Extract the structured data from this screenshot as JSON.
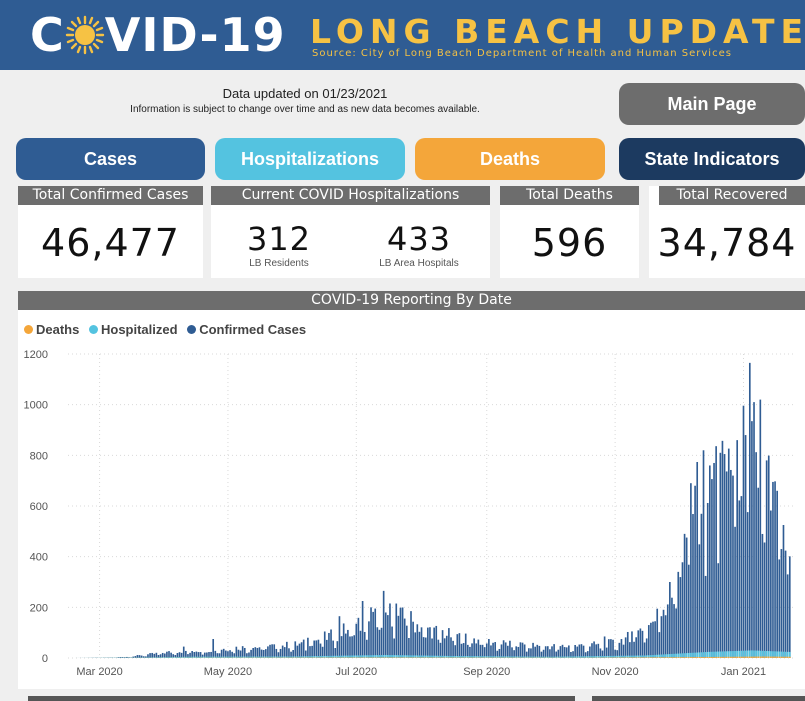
{
  "banner": {
    "covid_text_a": "C",
    "covid_text_b": "VID-19",
    "title": "LONG BEACH UPDATES",
    "source": "Source: City of Long Beach Department of Health and Human Services",
    "sun_icon": "sun-virus-icon",
    "colors": {
      "bg": "#2f5c93",
      "accent": "#f6c244"
    }
  },
  "updated": {
    "line1": "Data updated on 01/23/2021",
    "line2": "Information is subject to change over time and as new data becomes available."
  },
  "nav": {
    "main_page": "Main Page",
    "cases": "Cases",
    "hospitalizations": "Hospitalizations",
    "deaths": "Deaths",
    "state_indicators": "State Indicators"
  },
  "cards": {
    "total_cases_label": "Total Confirmed Cases",
    "total_cases_value": "46,477",
    "hosp_label": "Current COVID Hospitalizations",
    "hosp_lb_value": "312",
    "hosp_lb_label": "LB Residents",
    "hosp_area_value": "433",
    "hosp_area_label": "LB Area Hospitals",
    "deaths_label": "Total Deaths",
    "deaths_value": "596",
    "recovered_label": "Total Recovered",
    "recovered_value": "34,784"
  },
  "chart_data": {
    "type": "bar",
    "title": "COVID-19 Reporting By Date",
    "legend_position": "top-left",
    "grid": true,
    "series": [
      {
        "name": "Deaths",
        "color": "#f4a63a"
      },
      {
        "name": "Hospitalized",
        "color": "#54c3e0"
      },
      {
        "name": "Confirmed Cases",
        "color": "#2f5c93"
      }
    ],
    "ylim": [
      0,
      1200
    ],
    "yticks": [
      "0",
      "200",
      "400",
      "600",
      "800",
      "1000",
      "1200"
    ],
    "yticks_values": [
      0,
      200,
      400,
      600,
      800,
      1000,
      1200
    ],
    "xticks": [
      "Mar 2020",
      "May 2020",
      "Jul 2020",
      "Sep 2020",
      "Nov 2020",
      "Jan 2021"
    ],
    "xticks_dates": [
      "2020-03-01",
      "2020-05-01",
      "2020-07-01",
      "2020-09-01",
      "2020-11-01",
      "2021-01-01"
    ],
    "x_start": "2020-02-18",
    "x_end": "2021-01-23",
    "confirmed_anchors": [
      [
        "2020-02-18",
        0
      ],
      [
        "2020-03-05",
        1
      ],
      [
        "2020-03-15",
        5
      ],
      [
        "2020-03-25",
        15
      ],
      [
        "2020-04-05",
        25
      ],
      [
        "2020-04-20",
        30
      ],
      [
        "2020-05-05",
        40
      ],
      [
        "2020-05-20",
        45
      ],
      [
        "2020-06-05",
        55
      ],
      [
        "2020-06-20",
        90
      ],
      [
        "2020-07-01",
        130
      ],
      [
        "2020-07-10",
        160
      ],
      [
        "2020-07-18",
        175
      ],
      [
        "2020-07-25",
        150
      ],
      [
        "2020-08-05",
        110
      ],
      [
        "2020-08-20",
        80
      ],
      [
        "2020-09-05",
        60
      ],
      [
        "2020-09-20",
        50
      ],
      [
        "2020-10-05",
        45
      ],
      [
        "2020-10-20",
        50
      ],
      [
        "2020-11-01",
        60
      ],
      [
        "2020-11-10",
        90
      ],
      [
        "2020-11-20",
        150
      ],
      [
        "2020-11-28",
        260
      ],
      [
        "2020-12-05",
        470
      ],
      [
        "2020-12-12",
        650
      ],
      [
        "2020-12-18",
        740
      ],
      [
        "2020-12-24",
        760
      ],
      [
        "2020-12-30",
        820
      ],
      [
        "2021-01-05",
        800
      ],
      [
        "2021-01-10",
        720
      ],
      [
        "2021-01-15",
        600
      ],
      [
        "2021-01-20",
        450
      ],
      [
        "2021-01-23",
        330
      ]
    ],
    "confirmed_peaks": [
      [
        "2020-04-10",
        45
      ],
      [
        "2020-04-24",
        75
      ],
      [
        "2020-06-08",
        80
      ],
      [
        "2020-06-23",
        165
      ],
      [
        "2020-07-04",
        225
      ],
      [
        "2020-07-08",
        200
      ],
      [
        "2020-07-14",
        265
      ],
      [
        "2020-07-20",
        215
      ],
      [
        "2020-07-27",
        185
      ],
      [
        "2020-08-04",
        120
      ],
      [
        "2020-08-11",
        110
      ],
      [
        "2020-10-27",
        85
      ],
      [
        "2020-11-09",
        105
      ],
      [
        "2020-11-17",
        130
      ],
      [
        "2020-11-23",
        165
      ],
      [
        "2020-11-27",
        300
      ],
      [
        "2020-12-01",
        340
      ],
      [
        "2020-12-04",
        490
      ],
      [
        "2020-12-07",
        690
      ],
      [
        "2020-12-09",
        680
      ],
      [
        "2020-12-13",
        820
      ],
      [
        "2020-12-16",
        760
      ],
      [
        "2020-12-21",
        810
      ],
      [
        "2020-12-23",
        805
      ],
      [
        "2020-12-27",
        720
      ],
      [
        "2020-12-29",
        860
      ],
      [
        "2021-01-02",
        880
      ],
      [
        "2021-01-04",
        1165
      ],
      [
        "2021-01-06",
        1010
      ],
      [
        "2021-01-09",
        1020
      ],
      [
        "2021-01-12",
        780
      ],
      [
        "2021-01-15",
        695
      ],
      [
        "2021-01-17",
        660
      ],
      [
        "2021-01-20",
        525
      ],
      [
        "2021-01-22",
        330
      ]
    ],
    "hospitalized_anchors": [
      [
        "2020-02-18",
        0
      ],
      [
        "2020-03-20",
        2
      ],
      [
        "2020-04-15",
        5
      ],
      [
        "2020-06-01",
        6
      ],
      [
        "2020-07-15",
        12
      ],
      [
        "2020-08-15",
        8
      ],
      [
        "2020-10-01",
        5
      ],
      [
        "2020-11-15",
        10
      ],
      [
        "2020-12-15",
        24
      ],
      [
        "2021-01-05",
        30
      ],
      [
        "2021-01-23",
        24
      ]
    ],
    "deaths_anchors": [
      [
        "2020-02-18",
        0
      ],
      [
        "2020-04-15",
        1
      ],
      [
        "2020-07-20",
        2
      ],
      [
        "2020-10-15",
        1
      ],
      [
        "2020-12-15",
        4
      ],
      [
        "2021-01-10",
        6
      ],
      [
        "2021-01-23",
        5
      ]
    ]
  }
}
